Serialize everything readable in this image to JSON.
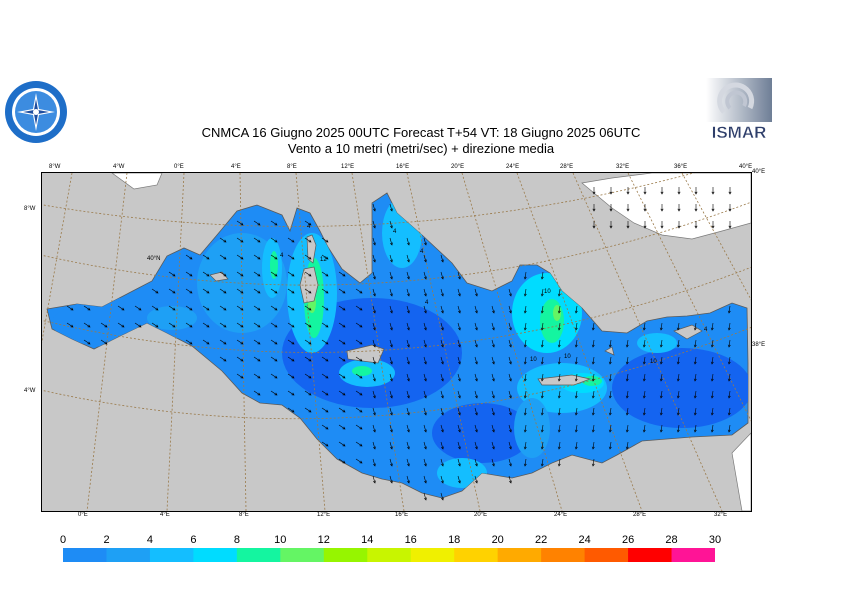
{
  "title": {
    "line1": "CNMCA 16   Giugno  2025 00UTC Forecast T+54 VT: 18   Giugno  2025 06UTC",
    "line2": "Vento a 10 metri (metri/sec) + direzione media"
  },
  "logos": {
    "left": "meteo-seal-logo",
    "right": "ISMAR"
  },
  "map": {
    "top_ticks": [
      "8°W",
      "4°W",
      "0°E",
      "4°E",
      "8°E",
      "12°E",
      "16°E",
      "20°E",
      "24°E",
      "28°E",
      "32°E",
      "36°E",
      "40°E"
    ],
    "bottom_ticks": [
      "0°E",
      "4°E",
      "8°E",
      "12°E",
      "16°E",
      "20°E",
      "24°E",
      "28°E",
      "32°E"
    ],
    "left_ticks": [
      "8°W",
      "4°W"
    ],
    "right_ticks": [
      "40°E",
      "38°E"
    ],
    "inner_labels": [
      "40°N"
    ],
    "contour_labels": [
      "4",
      "4",
      "4",
      "4",
      "12",
      "10",
      "4",
      "10",
      "10",
      "10",
      "4"
    ],
    "colors": {
      "land": "#c8c8c8",
      "graticule": "#9a7a4a",
      "coast": "#7a7a7a"
    }
  },
  "colorbar": {
    "labels": [
      "0",
      "2",
      "4",
      "6",
      "8",
      "10",
      "12",
      "14",
      "16",
      "18",
      "20",
      "22",
      "24",
      "26",
      "28",
      "30"
    ],
    "colors": [
      "#1464f0",
      "#1e8cf5",
      "#1ea0f5",
      "#14beff",
      "#00dcff",
      "#14f5a0",
      "#64f564",
      "#96f500",
      "#c8f500",
      "#f0f000",
      "#ffd200",
      "#ffaa00",
      "#ff8200",
      "#ff5a00",
      "#ff0000",
      "#ff1496"
    ]
  }
}
